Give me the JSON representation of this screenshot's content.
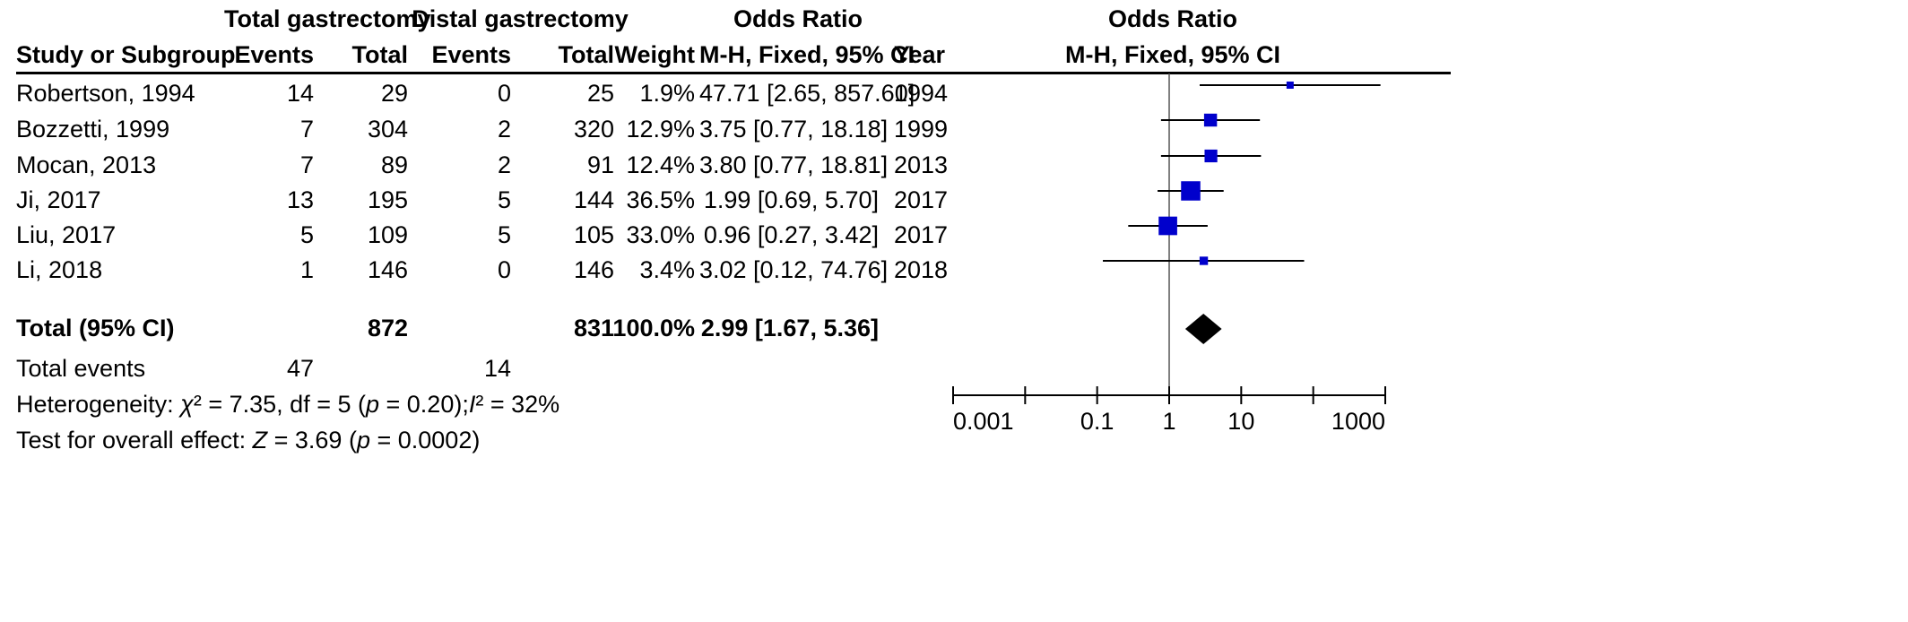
{
  "header": {
    "group1": "Total gastrectomy",
    "group2": "Distal gastrectomy",
    "or_title": "Odds Ratio",
    "col_study": "Study or Subgroup",
    "col_events1": "Events",
    "col_total1": "Total",
    "col_events2": "Events",
    "col_total2": "Total",
    "col_weight": "Weight",
    "col_method": "M-H, Fixed, 95% CI",
    "col_year": "Year",
    "plot_title": "Odds Ratio",
    "plot_method": "M-H, Fixed, 95% CI"
  },
  "studies": [
    {
      "name": "Robertson, 1994",
      "e1": "14",
      "t1": "29",
      "e2": "0",
      "t2": "25",
      "weight": "1.9%",
      "ci": "47.71 [2.65, 857.60]",
      "year": "1994"
    },
    {
      "name": "Bozzetti, 1999",
      "e1": "7",
      "t1": "304",
      "e2": "2",
      "t2": "320",
      "weight": "12.9%",
      "ci": "3.75 [0.77, 18.18]",
      "year": "1999"
    },
    {
      "name": "Mocan, 2013",
      "e1": "7",
      "t1": "89",
      "e2": "2",
      "t2": "91",
      "weight": "12.4%",
      "ci": "3.80 [0.77, 18.81]",
      "year": "2013"
    },
    {
      "name": "Ji, 2017",
      "e1": "13",
      "t1": "195",
      "e2": "5",
      "t2": "144",
      "weight": "36.5%",
      "ci": "1.99 [0.69, 5.70]",
      "year": "2017"
    },
    {
      "name": "Liu, 2017",
      "e1": "5",
      "t1": "109",
      "e2": "5",
      "t2": "105",
      "weight": "33.0%",
      "ci": "0.96 [0.27, 3.42]",
      "year": "2017"
    },
    {
      "name": "Li, 2018",
      "e1": "1",
      "t1": "146",
      "e2": "0",
      "t2": "146",
      "weight": "3.4%",
      "ci": "3.02 [0.12, 74.76]",
      "year": "2018"
    }
  ],
  "total": {
    "label": "Total (95% CI)",
    "t1": "872",
    "t2": "831",
    "weight": "100.0%",
    "ci": "2.99 [1.67, 5.36]"
  },
  "events": {
    "label": "Total events",
    "e1": "47",
    "e2": "14"
  },
  "heterogeneity": {
    "prefix": "Heterogeneity: ",
    "chi": "χ",
    "rest1": "² = 7.35, df = 5 (",
    "p": "p",
    "rest2": " = 0.20);",
    "i": "I",
    "rest3": "² = 32%"
  },
  "overall": {
    "prefix": "Test for overall effect: ",
    "z": "Z",
    "rest1": " = 3.69 (",
    "p": "p",
    "rest2": " = 0.0002)"
  },
  "chart_data": {
    "type": "scatter",
    "scale": "log",
    "xlim": [
      0.001,
      1000
    ],
    "ticks": [
      {
        "value": 0.001,
        "label": "0.001"
      },
      {
        "value": 0.1,
        "label": "0.1"
      },
      {
        "value": 1,
        "label": "1"
      },
      {
        "value": 10,
        "label": "10"
      },
      {
        "value": 1000,
        "label": "1000"
      }
    ],
    "reference_line": 1,
    "studies": [
      {
        "or": 47.71,
        "lo": 2.65,
        "hi": 857.6,
        "weight": 1.9
      },
      {
        "or": 3.75,
        "lo": 0.77,
        "hi": 18.18,
        "weight": 12.9
      },
      {
        "or": 3.8,
        "lo": 0.77,
        "hi": 18.81,
        "weight": 12.4
      },
      {
        "or": 1.99,
        "lo": 0.69,
        "hi": 5.7,
        "weight": 36.5
      },
      {
        "or": 0.96,
        "lo": 0.27,
        "hi": 3.42,
        "weight": 33.0
      },
      {
        "or": 3.02,
        "lo": 0.12,
        "hi": 74.76,
        "weight": 3.4
      }
    ],
    "pooled": {
      "or": 2.99,
      "lo": 1.67,
      "hi": 5.36
    },
    "marker_color": "#0000cc",
    "line_color": "#000000"
  }
}
